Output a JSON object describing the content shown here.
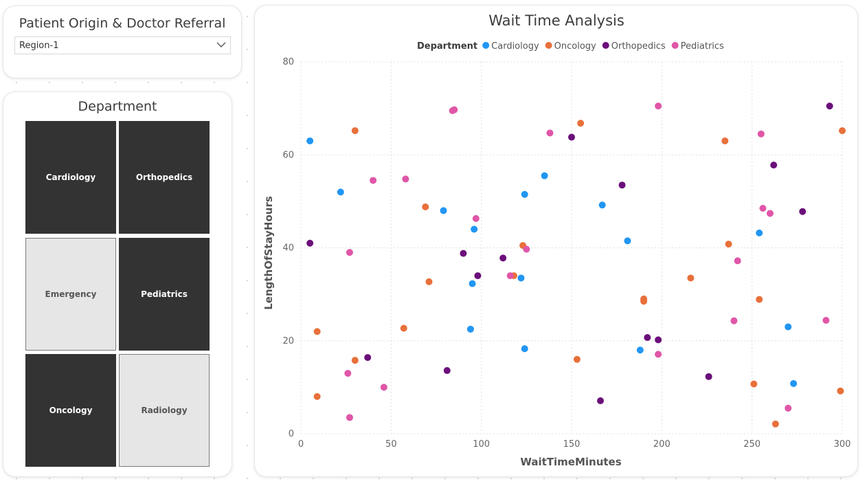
{
  "slicer": {
    "title": "Patient Origin & Doctor Referral",
    "selected": "Region-1"
  },
  "department_slicer": {
    "title": "Department",
    "tiles": [
      {
        "label": "Cardiology",
        "selected": true
      },
      {
        "label": "Orthopedics",
        "selected": true
      },
      {
        "label": "Emergency",
        "selected": false
      },
      {
        "label": "Pediatrics",
        "selected": true
      },
      {
        "label": "Oncology",
        "selected": true
      },
      {
        "label": "Radiology",
        "selected": false
      }
    ]
  },
  "chart_data": {
    "type": "scatter",
    "title": "Wait Time Analysis",
    "xlabel": "WaitTimeMinutes",
    "ylabel": "LengthOfStayHours",
    "xlim": [
      0,
      300
    ],
    "ylim": [
      0,
      80
    ],
    "xticks": [
      0,
      50,
      100,
      150,
      200,
      250,
      300
    ],
    "yticks": [
      0,
      20,
      40,
      60,
      80
    ],
    "grid": true,
    "legend": {
      "title": "Department",
      "placement": "top-center"
    },
    "series": [
      {
        "name": "Cardiology",
        "color": "#2196F3",
        "points": [
          [
            5,
            63
          ],
          [
            22,
            52
          ],
          [
            79,
            48
          ],
          [
            96,
            44
          ],
          [
            95,
            32.3
          ],
          [
            94,
            22.5
          ],
          [
            122,
            33.5
          ],
          [
            124,
            51.5
          ],
          [
            124,
            18.3
          ],
          [
            135,
            55.5
          ],
          [
            167,
            49.2
          ],
          [
            181,
            41.5
          ],
          [
            188,
            18
          ],
          [
            254,
            43.2
          ],
          [
            270,
            23
          ],
          [
            273,
            10.8
          ]
        ]
      },
      {
        "name": "Oncology",
        "color": "#E8703A",
        "points": [
          [
            9,
            22
          ],
          [
            9,
            8
          ],
          [
            30,
            65.2
          ],
          [
            30,
            15.8
          ],
          [
            57,
            22.7
          ],
          [
            69,
            48.8
          ],
          [
            71,
            32.7
          ],
          [
            118,
            34
          ],
          [
            123,
            40.5
          ],
          [
            153,
            16
          ],
          [
            155,
            66.8
          ],
          [
            190,
            29
          ],
          [
            190,
            28.5
          ],
          [
            216,
            33.5
          ],
          [
            235,
            63
          ],
          [
            237,
            40.8
          ],
          [
            251,
            10.7
          ],
          [
            254,
            28.9
          ],
          [
            263,
            2.1
          ],
          [
            299,
            9.2
          ],
          [
            300,
            65.2
          ]
        ]
      },
      {
        "name": "Orthopedics",
        "color": "#6B0F7A",
        "points": [
          [
            5,
            41
          ],
          [
            37,
            16.4
          ],
          [
            81,
            13.6
          ],
          [
            90,
            38.8
          ],
          [
            98,
            34
          ],
          [
            112,
            37.8
          ],
          [
            150,
            63.8
          ],
          [
            166,
            7.1
          ],
          [
            178,
            53.5
          ],
          [
            192,
            20.7
          ],
          [
            198,
            20.2
          ],
          [
            226,
            12.3
          ],
          [
            262,
            57.8
          ],
          [
            278,
            47.8
          ],
          [
            293,
            70.5
          ]
        ]
      },
      {
        "name": "Pediatrics",
        "color": "#E056A8",
        "points": [
          [
            26,
            13
          ],
          [
            27,
            39
          ],
          [
            27,
            3.5
          ],
          [
            40,
            54.5
          ],
          [
            46,
            10
          ],
          [
            58,
            54.8
          ],
          [
            84,
            69.5
          ],
          [
            85,
            69.7
          ],
          [
            97,
            46.3
          ],
          [
            116,
            34
          ],
          [
            125,
            39.7
          ],
          [
            138,
            64.7
          ],
          [
            198,
            70.5
          ],
          [
            198,
            17.1
          ],
          [
            240,
            24.3
          ],
          [
            242,
            37.2
          ],
          [
            255,
            64.5
          ],
          [
            256,
            48.5
          ],
          [
            260,
            47.4
          ],
          [
            270,
            5.5
          ],
          [
            291,
            24.4
          ]
        ]
      }
    ]
  }
}
